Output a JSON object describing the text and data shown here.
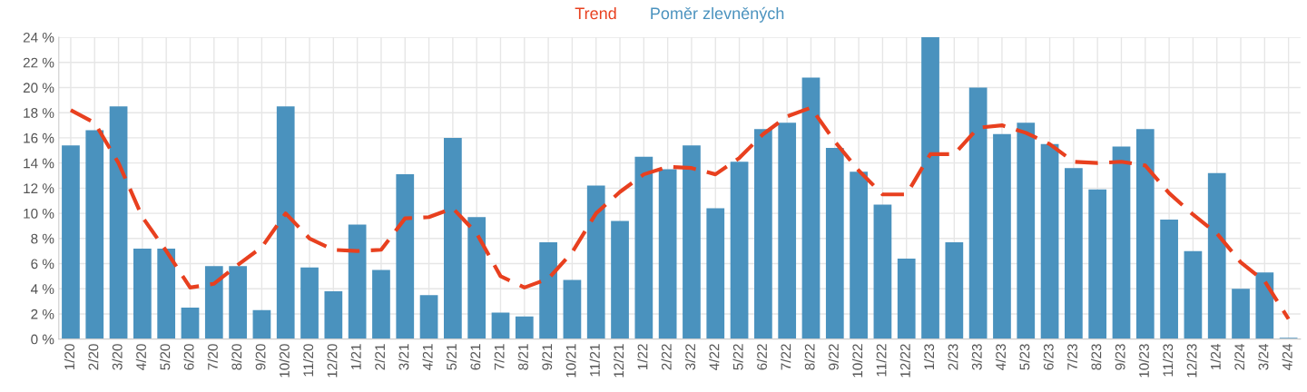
{
  "chart_data": {
    "type": "bar",
    "categories": [
      "1/20",
      "2/20",
      "3/20",
      "4/20",
      "5/20",
      "6/20",
      "7/20",
      "8/20",
      "9/20",
      "10/20",
      "11/20",
      "12/20",
      "1/21",
      "2/21",
      "3/21",
      "4/21",
      "5/21",
      "6/21",
      "7/21",
      "8/21",
      "9/21",
      "10/21",
      "11/21",
      "12/21",
      "1/22",
      "2/22",
      "3/22",
      "4/22",
      "5/22",
      "6/22",
      "7/22",
      "8/22",
      "9/22",
      "10/22",
      "11/22",
      "12/22",
      "1/23",
      "2/23",
      "3/23",
      "4/23",
      "5/23",
      "6/23",
      "7/23",
      "8/23",
      "9/23",
      "10/23",
      "11/23",
      "12/23",
      "1/24",
      "2/24",
      "3/24",
      "4/24"
    ],
    "series": [
      {
        "name": "Trend",
        "type": "line",
        "color": "#e8401f",
        "line_style": "dashed",
        "values": [
          18.2,
          17.2,
          14.0,
          9.7,
          7.0,
          4.1,
          4.4,
          5.9,
          7.3,
          10.0,
          8.0,
          7.1,
          7.0,
          7.1,
          9.6,
          9.7,
          10.4,
          8.4,
          5.0,
          4.1,
          4.8,
          6.9,
          10.0,
          11.7,
          13.1,
          13.7,
          13.6,
          13.1,
          14.4,
          16.3,
          17.7,
          18.4,
          15.7,
          13.4,
          11.5,
          11.5,
          14.7,
          14.7,
          16.8,
          17.0,
          16.4,
          15.5,
          14.1,
          14.0,
          14.1,
          13.8,
          11.6,
          9.9,
          8.4,
          6.1,
          4.6,
          1.6
        ]
      },
      {
        "name": "Poměr zlevněných",
        "color": "#4a92be",
        "values": [
          15.4,
          16.6,
          18.5,
          7.2,
          7.2,
          2.5,
          5.8,
          5.8,
          2.3,
          18.5,
          5.7,
          3.8,
          9.1,
          5.5,
          13.1,
          3.5,
          16.0,
          9.7,
          2.1,
          1.8,
          7.7,
          4.7,
          12.2,
          9.4,
          14.5,
          13.5,
          15.4,
          10.4,
          14.1,
          16.7,
          17.2,
          20.8,
          15.2,
          13.3,
          10.7,
          6.4,
          24.0,
          7.7,
          20.0,
          16.3,
          17.2,
          15.5,
          13.6,
          11.9,
          15.3,
          16.7,
          9.5,
          7.0,
          13.2,
          4.0,
          5.3,
          0.1
        ]
      }
    ],
    "ylim": [
      0,
      24
    ],
    "yticks": [
      {
        "value": 0,
        "label": "0 %"
      },
      {
        "value": 2,
        "label": "2 %"
      },
      {
        "value": 4,
        "label": "4 %"
      },
      {
        "value": 6,
        "label": "6 %"
      },
      {
        "value": 8,
        "label": "8 %"
      },
      {
        "value": 10,
        "label": "10 %"
      },
      {
        "value": 12,
        "label": "12 %"
      },
      {
        "value": 14,
        "label": "14 %"
      },
      {
        "value": 16,
        "label": "16 %"
      },
      {
        "value": 18,
        "label": "18 %"
      },
      {
        "value": 20,
        "label": "20 %"
      },
      {
        "value": 22,
        "label": "22 %"
      },
      {
        "value": 24,
        "label": "24 %"
      }
    ],
    "grid": true,
    "legend": "top",
    "marker": "none"
  }
}
